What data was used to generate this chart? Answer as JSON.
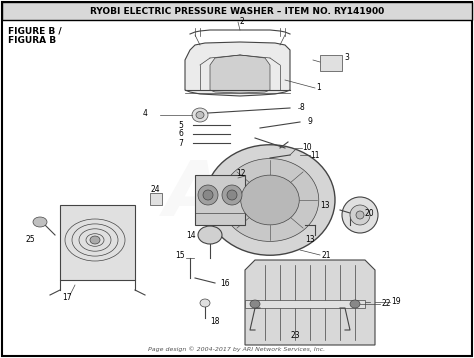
{
  "title": "RYOBI ELECTRIC PRESSURE WASHER – ITEM NO. RY141900",
  "figure_label": "FIGURE B /\nFIGURA B",
  "footer": "Page design © 2004-2017 by ARI Network Services, Inc.",
  "watermark": "ARI",
  "bg_color": "#ffffff",
  "border_color": "#000000",
  "title_bg": "#d8d8d8",
  "line_color": "#444444",
  "text_color": "#000000",
  "part_number_fontsize": 5.5,
  "title_fontsize": 6.5,
  "figure_label_fontsize": 6.5,
  "footer_fontsize": 4.5,
  "watermark_fontsize": 55,
  "watermark_alpha": 0.1
}
